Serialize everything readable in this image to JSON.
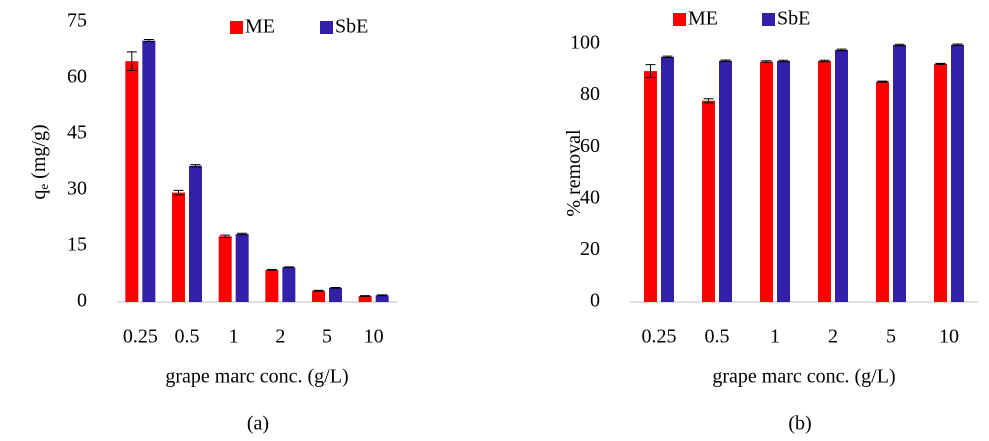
{
  "chart_data": [
    {
      "type": "bar",
      "panel_label": "(a)",
      "x_label": "grape marc conc. (g/L)",
      "y_label": {
        "text": "q",
        "subscript": "e",
        "after": " (mg/g)"
      },
      "categories": [
        "0.25",
        "0.5",
        "1",
        "2",
        "5",
        "10"
      ],
      "series": [
        {
          "name": "ME",
          "color": "#ff0000",
          "values": [
            64.5,
            29.3,
            17.6,
            8.6,
            3.0,
            1.6
          ],
          "errors": [
            2.5,
            0.6,
            0.3,
            0.1,
            0.1,
            0.1
          ]
        },
        {
          "name": "SbE",
          "color": "#3320a8",
          "values": [
            70.0,
            36.5,
            18.2,
            9.3,
            3.8,
            1.8
          ],
          "errors": [
            0.3,
            0.3,
            0.2,
            0.1,
            0.1,
            0.1
          ]
        }
      ],
      "ylim": [
        0,
        75
      ],
      "yticks": [
        0,
        15,
        30,
        45,
        60,
        75
      ],
      "grid": false
    },
    {
      "type": "bar",
      "panel_label": "(b)",
      "x_label": "grape marc conc. (g/L)",
      "y_label": {
        "text": "% removal"
      },
      "categories": [
        "0.25",
        "0.5",
        "1",
        "2",
        "5",
        "10"
      ],
      "series": [
        {
          "name": "ME",
          "color": "#ff0000",
          "values": [
            89.5,
            78.0,
            93.2,
            93.4,
            85.4,
            92.3
          ],
          "errors": [
            2.5,
            0.8,
            0.3,
            0.3,
            0.2,
            0.2
          ]
        },
        {
          "name": "SbE",
          "color": "#3320a8",
          "values": [
            95.0,
            93.5,
            93.4,
            97.7,
            99.6,
            99.7
          ],
          "errors": [
            0.3,
            0.3,
            0.3,
            0.3,
            0.3,
            0.3
          ]
        }
      ],
      "ylim": [
        0,
        100
      ],
      "yticks": [
        0,
        20,
        40,
        60,
        80,
        100
      ],
      "grid": false
    }
  ]
}
